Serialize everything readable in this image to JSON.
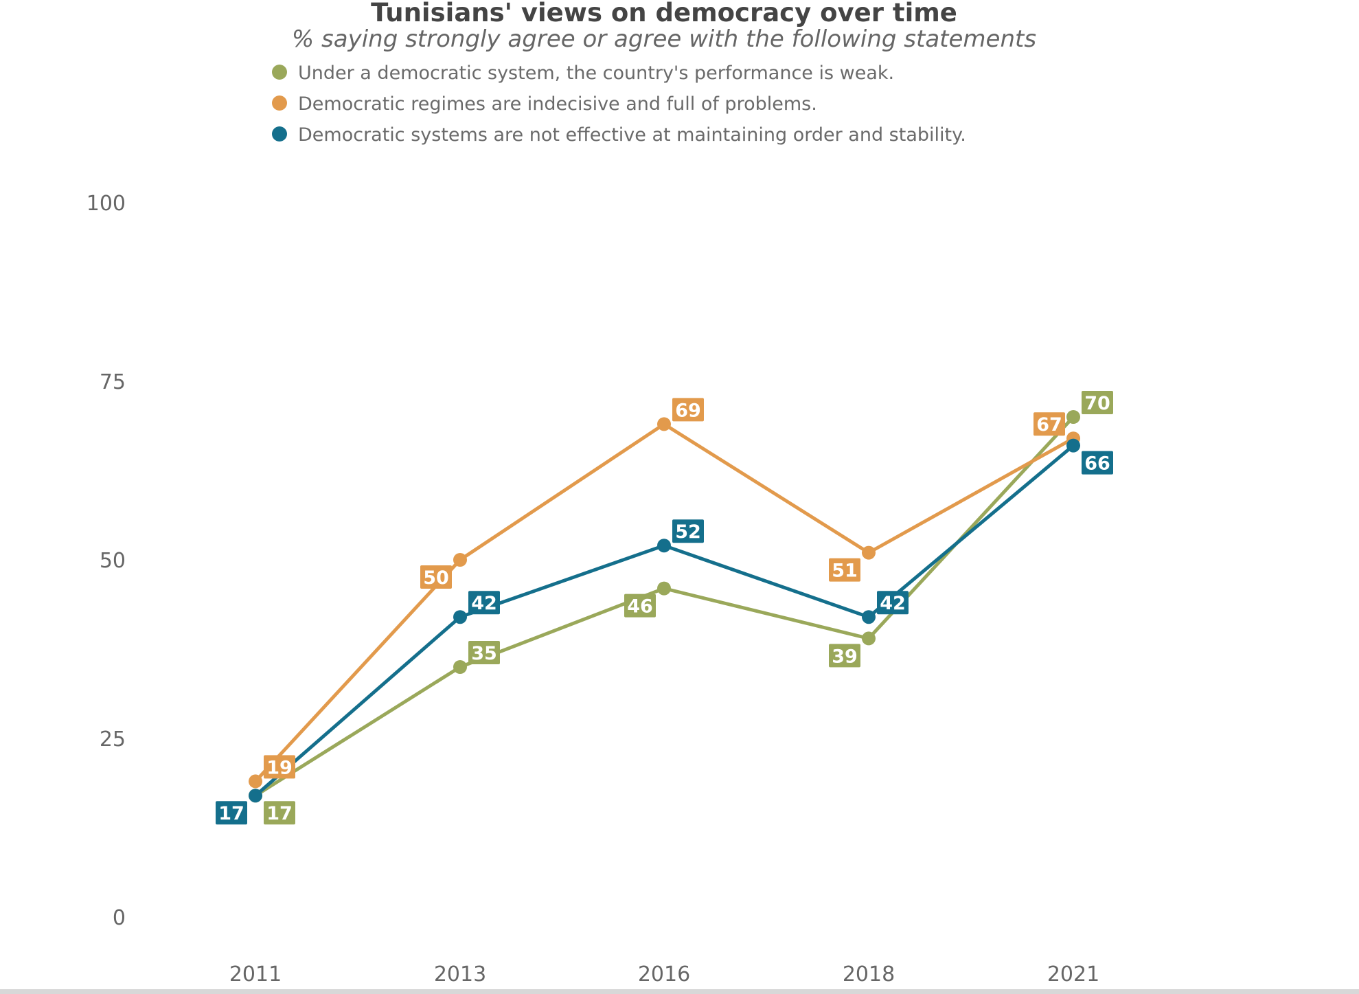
{
  "chart_data": {
    "type": "line",
    "title": "Tunisians' views on democracy over time",
    "subtitle": "% saying strongly agree or agree with the following statements",
    "xlabel": "",
    "ylabel": "",
    "categories": [
      "2011",
      "2013",
      "2016",
      "2018",
      "2021"
    ],
    "ylim": [
      0,
      100
    ],
    "yticks": [
      "0",
      "25",
      "50",
      "75",
      "100"
    ],
    "grid": false,
    "legend_position": "top-left",
    "series": [
      {
        "name": "Under a democratic system, the country's performance is weak.",
        "color": "#9aa85a",
        "values": [
          17,
          35,
          46,
          39,
          70
        ],
        "label_placement": [
          "below-right",
          "above-right",
          "below-left",
          "below-left",
          "above-right"
        ]
      },
      {
        "name": "Democratic regimes are indecisive and full of problems.",
        "color": "#e29a4c",
        "values": [
          19,
          50,
          69,
          51,
          67
        ],
        "label_placement": [
          "above-right",
          "below-left",
          "above-right",
          "below-left",
          "above-left"
        ]
      },
      {
        "name": "Democratic systems are not effective at maintaining order and stability.",
        "color": "#146f8c",
        "values": [
          17,
          42,
          52,
          42,
          66
        ],
        "label_placement": [
          "below-left",
          "above-right",
          "above-right",
          "above-right",
          "below-right"
        ]
      }
    ]
  }
}
